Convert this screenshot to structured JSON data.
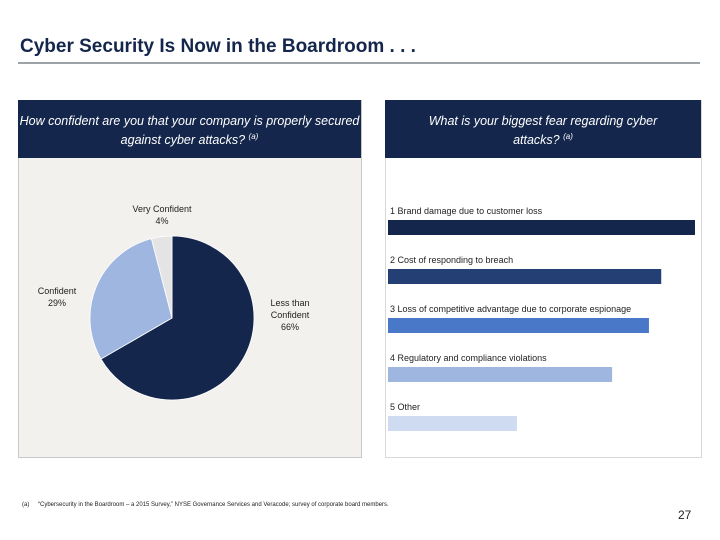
{
  "title": "Cyber Security Is Now in the Boardroom . . .",
  "chart_data": [
    {
      "type": "pie",
      "title": "How confident are you that your company is properly secured against cyber attacks?",
      "title_note": "(a)",
      "categories": [
        "Less than Confident",
        "Confident",
        "Very Confident"
      ],
      "values": [
        66,
        29,
        4
      ],
      "value_labels": [
        "66%",
        "29%",
        "4%"
      ],
      "colors": [
        "#14264b",
        "#9fb6e1",
        "#e4e4e4"
      ]
    },
    {
      "type": "hbar",
      "title": "What is your biggest fear regarding cyber attacks?",
      "title_note": "(a)",
      "categories": [
        "1 Brand damage due to customer loss",
        "2 Cost of responding to breach",
        "3 Loss of competitive advantage due to corporate espionage",
        "4 Regulatory and compliance violations",
        "5 Other"
      ],
      "values": [
        100,
        89,
        85,
        73,
        42
      ],
      "colors": [
        "#14264b",
        "#233f73",
        "#4a78c8",
        "#9fb6e1",
        "#cfdbf1"
      ]
    }
  ],
  "footnote": {
    "marker": "(a)",
    "text": "“Cybersecurity in the Boardroom – a 2015 Survey,” NYSE Governance Services and Veracode; survey of corporate board members."
  },
  "page_number": "27"
}
